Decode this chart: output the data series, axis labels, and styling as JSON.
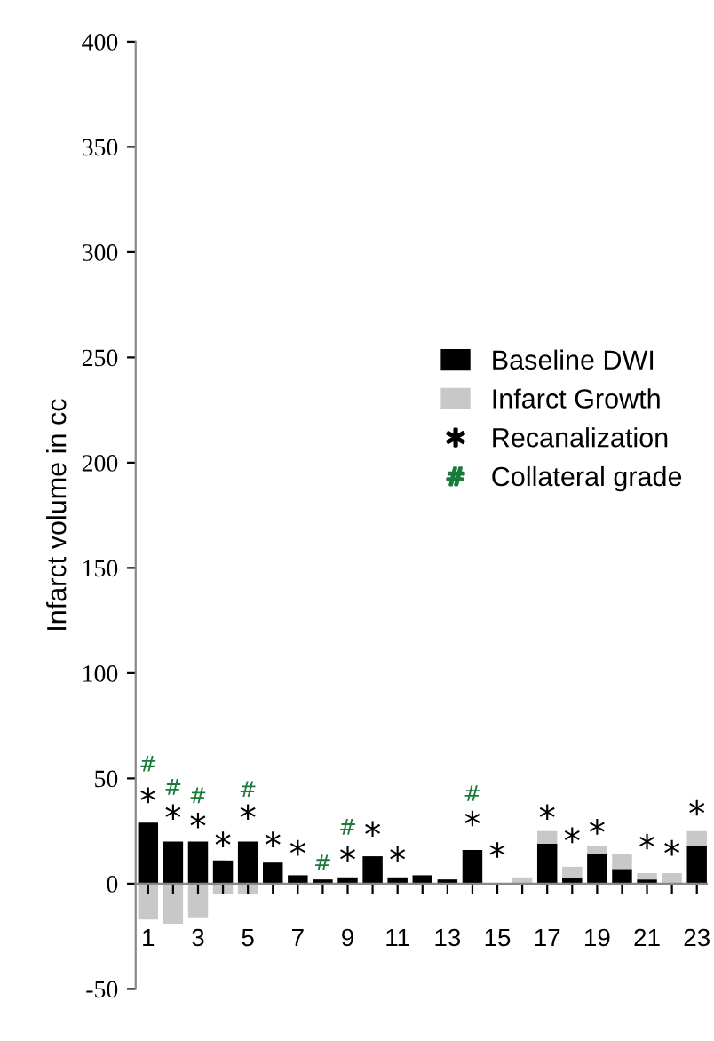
{
  "chart_data": {
    "type": "bar",
    "stacked": true,
    "ylabel": "Infarct volume in cc",
    "categories": [
      "1",
      null,
      "3",
      null,
      "5",
      null,
      "7",
      null,
      "9",
      null,
      "11",
      null,
      "13",
      null,
      "15",
      null,
      "17",
      null,
      "19",
      null,
      "21",
      null,
      "23"
    ],
    "series": [
      {
        "name": "Baseline DWI",
        "color": "#000000",
        "values": [
          29,
          20,
          20,
          11,
          20,
          10,
          4,
          2,
          3,
          13,
          3,
          4,
          2,
          16,
          0,
          0,
          19,
          3,
          14,
          7,
          2,
          0,
          18
        ]
      },
      {
        "name": "Infarct Growth",
        "color": "#c8c8c8",
        "values": [
          -17,
          -19,
          -16,
          -5,
          -5,
          0,
          0,
          0,
          0,
          0,
          0,
          0,
          0,
          0,
          0,
          3,
          6,
          5,
          4,
          7,
          3,
          5,
          7
        ]
      },
      {
        "name": "Recanalization",
        "type": "scatter",
        "marker": "star",
        "color": "#000000",
        "values": [
          42,
          34,
          30,
          21,
          34,
          21,
          17,
          null,
          14,
          26,
          14,
          null,
          null,
          31,
          16,
          null,
          34,
          23,
          27,
          null,
          20,
          17,
          36
        ]
      },
      {
        "name": "Collateral grade",
        "type": "scatter",
        "marker": "cross",
        "color": "#1a7a3a",
        "values": [
          57,
          46,
          42,
          null,
          45,
          null,
          null,
          10,
          27,
          null,
          null,
          null,
          null,
          43,
          null,
          null,
          null,
          null,
          null,
          null,
          null,
          null,
          null
        ]
      }
    ],
    "ylim": [
      -50,
      400
    ],
    "yticks": [
      -50,
      0,
      50,
      100,
      150,
      200,
      250,
      300,
      350,
      400
    ],
    "grid": false,
    "legend": "right"
  }
}
